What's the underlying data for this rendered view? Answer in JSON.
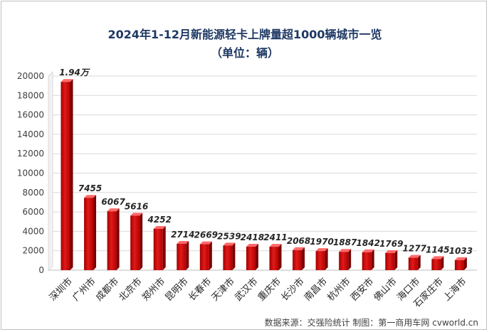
{
  "chart_data": {
    "type": "bar",
    "title": "2024年1-12月新能源轻卡上牌量超1000辆城市一览",
    "subtitle": "（单位：辆）",
    "categories": [
      "深圳市",
      "广州市",
      "成都市",
      "北京市",
      "郑州市",
      "昆明市",
      "长春市",
      "天津市",
      "武汉市",
      "重庆市",
      "长沙市",
      "南昌市",
      "杭州市",
      "西安市",
      "佛山市",
      "海口市",
      "石家庄市",
      "上海市"
    ],
    "values": [
      19400,
      7455,
      6067,
      5616,
      4252,
      2714,
      2669,
      2539,
      2418,
      2411,
      2068,
      1970,
      1887,
      1842,
      1769,
      1277,
      1145,
      1033
    ],
    "value_labels": [
      "1.94万",
      "7455",
      "6067",
      "5616",
      "4252",
      "2714",
      "2669",
      "2539",
      "2418",
      "2411",
      "2068",
      "1970",
      "1887",
      "1842",
      "1769",
      "1277",
      "1145",
      "1033"
    ],
    "ylim": [
      0,
      20000
    ],
    "yticks": [
      0,
      2000,
      4000,
      6000,
      8000,
      10000,
      12000,
      14000,
      16000,
      18000,
      20000
    ],
    "grid": true,
    "legend": "none",
    "bar_color": "#c00000"
  },
  "source_note": "数据来源：交强险统计  制图：第一商用车网 cvworld.cn"
}
